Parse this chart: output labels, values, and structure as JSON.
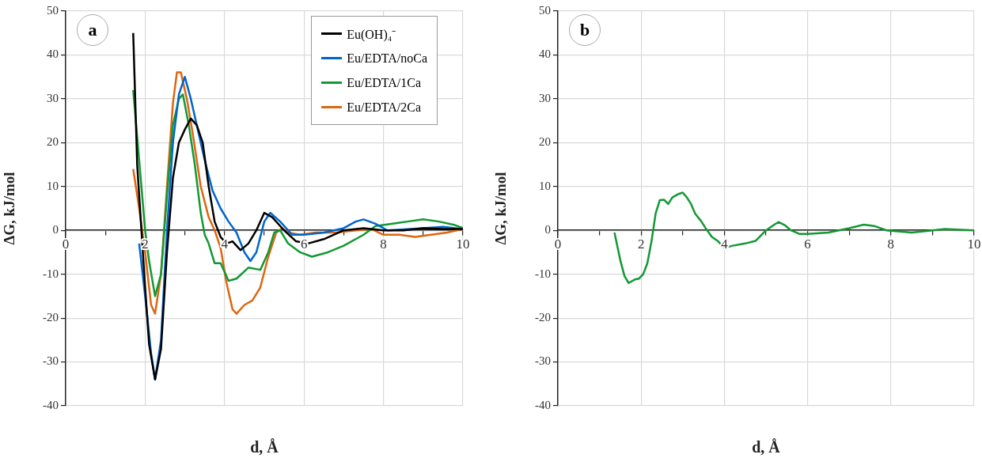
{
  "chart_data": [
    {
      "type": "line",
      "xlabel": "d, Å",
      "ylabel": "ΔG, kJ/mol",
      "annotations": [
        "a"
      ],
      "xlim": [
        0,
        10
      ],
      "ylim": [
        -40,
        50
      ],
      "xticks": [
        0,
        {
          "value": 1,
          "label": null
        },
        2,
        {
          "value": 3,
          "label": null
        },
        4,
        {
          "value": 5,
          "label": null
        },
        6,
        {
          "value": 7,
          "label": null
        },
        8,
        {
          "value": 9,
          "label": null
        },
        10
      ],
      "yticks": [
        -40,
        -30,
        -20,
        -10,
        0,
        10,
        20,
        30,
        40,
        50
      ],
      "grid": true,
      "legend": "top right",
      "line_style": "solid",
      "series": [
        {
          "name": "Eu(OH)₄⁻",
          "color": "#000000",
          "x": [
            1.7,
            1.8,
            2.0,
            2.1,
            2.25,
            2.4,
            2.55,
            2.7,
            2.85,
            3.0,
            3.15,
            3.3,
            3.45,
            3.6,
            3.75,
            3.9,
            4.05,
            4.2,
            4.4,
            4.6,
            4.8,
            5.0,
            5.2,
            5.5,
            5.8,
            6.1,
            6.5,
            7.0,
            7.5,
            8.0,
            8.5,
            9.0,
            9.5,
            10
          ],
          "values": [
            45,
            15,
            -13,
            -26,
            -34,
            -27,
            -5,
            12,
            20,
            23,
            25.5,
            24,
            20,
            10,
            2,
            -1.5,
            -3,
            -2.5,
            -4.5,
            -3,
            0,
            4,
            3,
            0,
            -2.5,
            -3,
            -2,
            0,
            0.5,
            0,
            0,
            0.5,
            0.3,
            0.3
          ]
        },
        {
          "name": "Eu/EDTA/noCa",
          "color": "#0066cc",
          "x": [
            1.85,
            2.0,
            2.15,
            2.25,
            2.4,
            2.55,
            2.7,
            2.85,
            3.0,
            3.15,
            3.3,
            3.5,
            3.7,
            3.9,
            4.1,
            4.3,
            4.5,
            4.65,
            4.8,
            5.0,
            5.15,
            5.4,
            5.7,
            6.0,
            6.5,
            7.0,
            7.3,
            7.5,
            7.8,
            8.1,
            8.5,
            9.0,
            9.5,
            10
          ],
          "values": [
            -3,
            -15,
            -28,
            -34,
            -25,
            0,
            20,
            31,
            35,
            30,
            24,
            16,
            9,
            5,
            2,
            -0.5,
            -5,
            -7,
            -5,
            2,
            4,
            2,
            -1,
            -1,
            -0.5,
            0.5,
            2,
            2.5,
            1.5,
            0,
            0.2,
            0.5,
            0.8,
            0.3
          ]
        },
        {
          "name": "Eu/EDTA/1Ca",
          "color": "#119933",
          "x": [
            1.7,
            1.85,
            2.0,
            2.1,
            2.25,
            2.4,
            2.55,
            2.7,
            2.85,
            2.95,
            3.1,
            3.25,
            3.4,
            3.5,
            3.6,
            3.75,
            3.9,
            4.1,
            4.3,
            4.6,
            4.9,
            5.1,
            5.25,
            5.4,
            5.6,
            5.9,
            6.2,
            6.6,
            7.0,
            7.5,
            7.8,
            8.2,
            8.6,
            9.0,
            9.4,
            9.8,
            10
          ],
          "values": [
            32,
            16,
            0,
            -7,
            -15,
            -10,
            8,
            24,
            30,
            31,
            24,
            15,
            4,
            -1,
            -3,
            -7.5,
            -7.5,
            -11.5,
            -11,
            -8.5,
            -9,
            -5,
            -0.5,
            0,
            -3,
            -5,
            -6,
            -5,
            -3.5,
            -1,
            1,
            1.5,
            2,
            2.5,
            2,
            1.2,
            0.5
          ]
        },
        {
          "name": "Eu/EDTA/2Ca",
          "color": "#dd6611",
          "x": [
            1.7,
            1.85,
            2.0,
            2.15,
            2.25,
            2.4,
            2.55,
            2.7,
            2.8,
            2.9,
            3.05,
            3.2,
            3.4,
            3.6,
            3.75,
            3.9,
            4.05,
            4.2,
            4.3,
            4.5,
            4.7,
            4.9,
            5.1,
            5.3,
            5.45,
            5.6,
            5.9,
            6.3,
            6.8,
            7.3,
            7.7,
            8.0,
            8.4,
            8.8,
            9.2,
            9.6,
            10
          ],
          "values": [
            14,
            5,
            -5,
            -17,
            -19,
            -10,
            10,
            29,
            36,
            36,
            30,
            22,
            10,
            3,
            0,
            -4,
            -12,
            -18,
            -19,
            -17,
            -16,
            -13,
            -6,
            -0.5,
            0.5,
            -0.5,
            -1,
            -0.5,
            -0.5,
            0,
            0.3,
            -1,
            -1,
            -1.5,
            -1,
            -0.5,
            0.3
          ]
        }
      ]
    },
    {
      "type": "line",
      "xlabel": "d, Å",
      "ylabel": "ΔG, kJ/mol",
      "annotations": [
        "b"
      ],
      "xlim": [
        0,
        10
      ],
      "ylim": [
        -40,
        50
      ],
      "xticks": [
        0,
        {
          "value": 1,
          "label": null
        },
        2,
        {
          "value": 3,
          "label": null
        },
        4,
        {
          "value": 5,
          "label": null
        },
        6,
        {
          "value": 7,
          "label": null
        },
        8,
        {
          "value": 9,
          "label": null
        },
        10
      ],
      "yticks": [
        -40,
        -30,
        -20,
        -10,
        0,
        10,
        20,
        30,
        40,
        50
      ],
      "grid": true,
      "line_style": "solid",
      "series": [
        {
          "color": "#119933",
          "x": [
            1.36,
            1.5,
            1.6,
            1.7,
            1.85,
            1.95,
            2.05,
            2.15,
            2.25,
            2.35,
            2.45,
            2.55,
            2.65,
            2.75,
            2.9,
            3.0,
            3.1,
            3.2,
            3.3,
            3.45,
            3.55,
            3.7,
            3.85,
            4.0,
            4.2,
            4.5,
            4.75,
            5.0,
            5.2,
            5.3,
            5.45,
            5.6,
            5.8,
            6.0,
            6.5,
            7.0,
            7.35,
            7.6,
            7.9,
            8.5,
            9.0,
            9.3,
            10
          ],
          "values": [
            -0.5,
            -6.8,
            -10.4,
            -12,
            -11.2,
            -11,
            -10,
            -7.5,
            -2.5,
            3.9,
            6.9,
            7,
            6,
            7.5,
            8.3,
            8.6,
            7.5,
            6,
            3.8,
            2,
            0.5,
            -1.5,
            -2.5,
            -4,
            -3.5,
            -3,
            -2.4,
            0,
            1.3,
            1.9,
            1.2,
            0,
            -0.8,
            -0.8,
            -0.5,
            0.5,
            1.3,
            1,
            0,
            -0.5,
            0,
            0.3,
            0
          ]
        }
      ]
    }
  ]
}
